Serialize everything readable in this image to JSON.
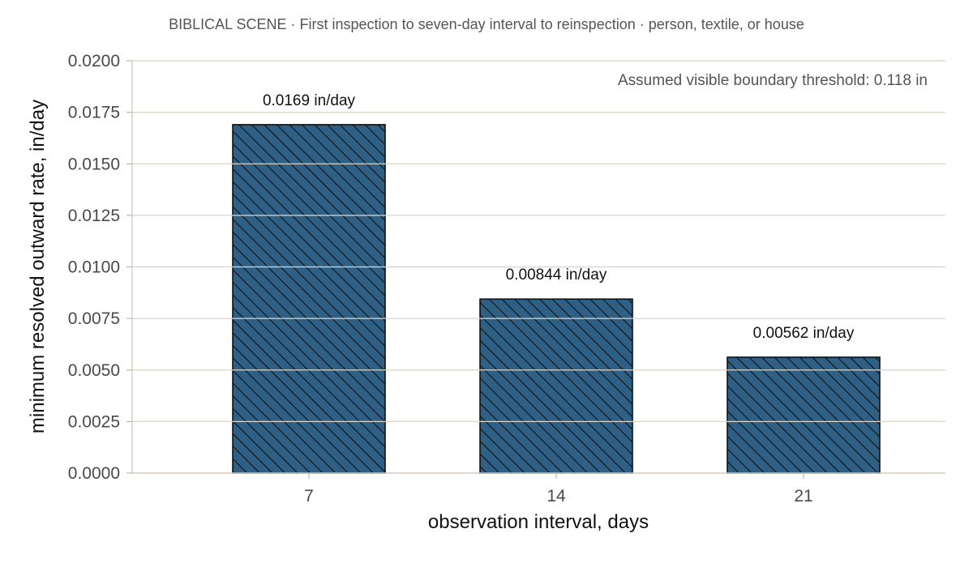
{
  "chart_data": {
    "type": "bar",
    "title": "BIBLICAL SCENE · First inspection  to  seven-day interval  to  reinspection · person, textile, or house",
    "xlabel": "observation interval, days",
    "ylabel": "minimum resolved outward rate, in/day",
    "categories": [
      "7",
      "14",
      "21"
    ],
    "values": [
      0.0169,
      0.00844,
      0.00562
    ],
    "data_labels": [
      "0.0169 in/day",
      "0.00844 in/day",
      "0.00562 in/day"
    ],
    "ylim": [
      0,
      0.02
    ],
    "yticks": [
      0.0,
      0.0025,
      0.005,
      0.0075,
      0.01,
      0.0125,
      0.015,
      0.0175,
      0.02
    ],
    "ytick_labels": [
      "0.0000",
      "0.0025",
      "0.0050",
      "0.0075",
      "0.0100",
      "0.0125",
      "0.0150",
      "0.0175",
      "0.0200"
    ],
    "annotation": "Assumed visible boundary threshold: 0.118 in",
    "annotation_position": "top-right",
    "grid": true,
    "bar_color": "#2e5f84",
    "bar_edge_color": "#111111",
    "bar_pattern": "diagonal-hatch",
    "grid_color": "#ddd8cc"
  }
}
